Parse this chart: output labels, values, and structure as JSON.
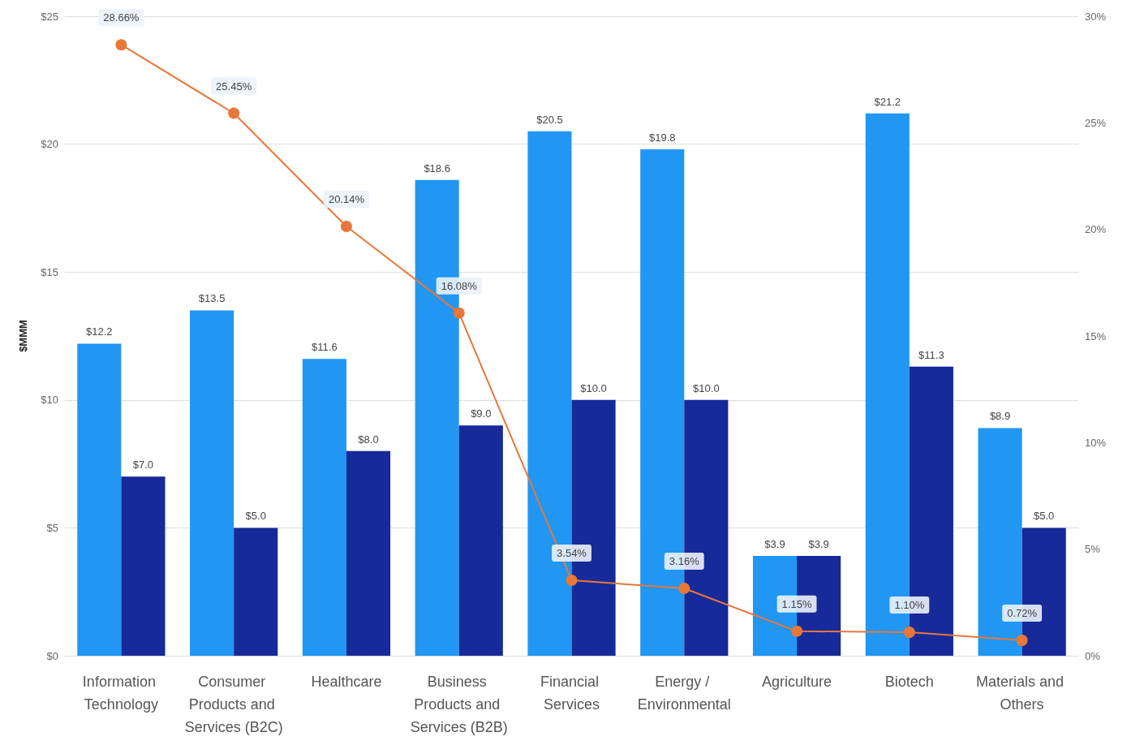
{
  "chart_data": {
    "type": "bar",
    "ylabel": "$MMM",
    "categories": [
      "Information Technology",
      "Consumer Products and Services (B2C)",
      "Healthcare",
      "Business Products and Services (B2B)",
      "Financial Services",
      "Energy / Environmental",
      "Agriculture",
      "Biotech",
      "Materials and Others"
    ],
    "series": [
      {
        "color": "#2196f3",
        "values": [
          12.2,
          13.5,
          11.6,
          18.6,
          20.5,
          19.8,
          3.9,
          21.2,
          8.9
        ],
        "value_labels": [
          "$12.2",
          "$13.5",
          "$11.6",
          "$18.6",
          "$20.5",
          "$19.8",
          "$3.9",
          "$21.2",
          "$8.9"
        ]
      },
      {
        "color": "#172a9a",
        "values": [
          7.0,
          5.0,
          8.0,
          9.0,
          10.0,
          10.0,
          3.9,
          11.3,
          5.0
        ],
        "value_labels": [
          "$7.0",
          "$5.0",
          "$8.0",
          "$9.0",
          "$10.0",
          "$10.0",
          "$3.9",
          "$11.3",
          "$5.0"
        ]
      },
      {
        "type": "line",
        "axis": "y2",
        "color": "#e8773a",
        "marker": "circle",
        "line_style": "solid",
        "values": [
          28.66,
          25.45,
          20.14,
          16.08,
          3.54,
          3.16,
          1.15,
          1.1,
          0.72
        ],
        "value_labels": [
          "28.66%",
          "25.45%",
          "20.14%",
          "16.08%",
          "3.54%",
          "3.16%",
          "1.15%",
          "1.10%",
          "0.72%"
        ]
      }
    ],
    "ylim": [
      0,
      25
    ],
    "yticks": [
      {
        "value": 0,
        "label": "$0"
      },
      {
        "value": 5,
        "label": "$5"
      },
      {
        "value": 10,
        "label": "$10"
      },
      {
        "value": 15,
        "label": "$15"
      },
      {
        "value": 20,
        "label": "$20"
      },
      {
        "value": 25,
        "label": "$25"
      }
    ],
    "y2lim": [
      0,
      30
    ],
    "y2ticks": [
      {
        "value": 0,
        "label": "0%"
      },
      {
        "value": 5,
        "label": "5%"
      },
      {
        "value": 10,
        "label": "10%"
      },
      {
        "value": 15,
        "label": "15%"
      },
      {
        "value": 20,
        "label": "20%"
      },
      {
        "value": 25,
        "label": "25%"
      },
      {
        "value": 30,
        "label": "30%"
      }
    ],
    "grid": "y"
  }
}
